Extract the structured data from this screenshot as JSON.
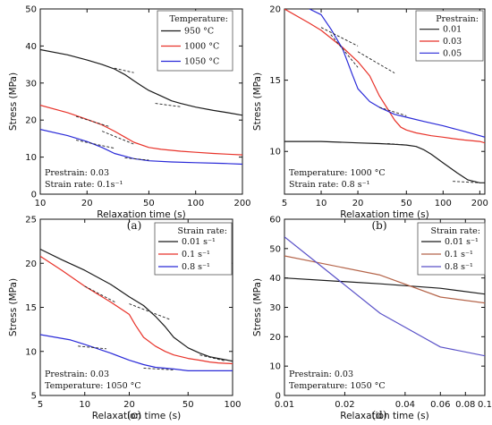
{
  "colors": {
    "black": "#1a1a1a",
    "red": "#e8332a",
    "blue": "#2a2ad8",
    "brown": "#b5654a",
    "violet": "#5a52c8"
  },
  "chart_data": [
    {
      "id": "a",
      "type": "line",
      "panel_label": "(a)",
      "xscale": "log",
      "xlim": [
        10,
        200
      ],
      "ylim": [
        0,
        50
      ],
      "xticks": [
        10,
        20,
        50,
        100,
        200
      ],
      "yticks": [
        0,
        10,
        20,
        30,
        40,
        50
      ],
      "xlabel": "Relaxation time (s)",
      "ylabel": "Stress (MPa)",
      "legend": {
        "title": "Temperature:",
        "position": "top-right"
      },
      "annotations": [
        "Prestrain: 0.03",
        "Strain rate: 0.1s⁻¹"
      ],
      "series": [
        {
          "name": "950 °C",
          "color": "black",
          "x": [
            10,
            15,
            20,
            25,
            30,
            35,
            40,
            45,
            50,
            60,
            70,
            80,
            100,
            130,
            160,
            200
          ],
          "y": [
            39,
            37.6,
            36.2,
            35,
            33.8,
            32.3,
            30.6,
            29.2,
            28,
            26.5,
            25.2,
            24.5,
            23.5,
            22.6,
            22,
            21.3
          ]
        },
        {
          "name": "1000 °C",
          "color": "red",
          "x": [
            10,
            15,
            20,
            25,
            30,
            35,
            40,
            50,
            60,
            80,
            100,
            130,
            160,
            200
          ],
          "y": [
            24,
            22,
            20.2,
            18.7,
            17,
            15.4,
            14,
            12.6,
            12.1,
            11.6,
            11.3,
            11,
            10.8,
            10.6
          ]
        },
        {
          "name": "1050 °C",
          "color": "blue",
          "x": [
            10,
            15,
            20,
            25,
            30,
            40,
            50,
            70,
            100,
            150,
            200
          ],
          "y": [
            17.5,
            15.8,
            14.2,
            12.6,
            11,
            9.6,
            9,
            8.7,
            8.5,
            8.3,
            8.1
          ]
        }
      ],
      "tangents": [
        {
          "x": [
            30,
            40
          ],
          "y": [
            34,
            32.8
          ]
        },
        {
          "x": [
            55,
            80
          ],
          "y": [
            24.5,
            23.6
          ]
        },
        {
          "x": [
            17,
            28
          ],
          "y": [
            21,
            18.2
          ]
        },
        {
          "x": [
            25,
            40
          ],
          "y": [
            17,
            13.5
          ]
        },
        {
          "x": [
            17,
            30
          ],
          "y": [
            14.6,
            12.4
          ]
        },
        {
          "x": [
            35,
            50
          ],
          "y": [
            9.8,
            9.2
          ]
        }
      ]
    },
    {
      "id": "b",
      "type": "line",
      "panel_label": "(b)",
      "xscale": "log",
      "xlim": [
        5,
        220
      ],
      "ylim": [
        7,
        20
      ],
      "xticks": [
        5,
        10,
        20,
        50,
        100,
        200
      ],
      "yticks": [
        10,
        15,
        20
      ],
      "xlabel": "Relaxation time (s)",
      "ylabel": "Stress (MPa)",
      "legend": {
        "title": "Prestrain:",
        "position": "top-right"
      },
      "annotations": [
        "Temperature: 1000 °C",
        "Strain rate: 0.8 s⁻¹"
      ],
      "series": [
        {
          "name": "0.01",
          "color": "black",
          "x": [
            5,
            10,
            20,
            30,
            40,
            50,
            60,
            70,
            80,
            100,
            130,
            160,
            200,
            220
          ],
          "y": [
            10.7,
            10.7,
            10.6,
            10.55,
            10.5,
            10.45,
            10.35,
            10.1,
            9.8,
            9.2,
            8.5,
            8,
            7.8,
            7.8
          ]
        },
        {
          "name": "0.03",
          "color": "red",
          "x": [
            5,
            8,
            10,
            15,
            20,
            25,
            30,
            35,
            40,
            45,
            50,
            60,
            80,
            100,
            120,
            150,
            200,
            220
          ],
          "y": [
            20,
            19,
            18.5,
            17.3,
            16.3,
            15.3,
            13.9,
            13,
            12.2,
            11.7,
            11.5,
            11.3,
            11.1,
            11,
            10.9,
            10.8,
            10.7,
            10.6
          ]
        },
        {
          "name": "0.05",
          "color": "blue",
          "x": [
            8,
            10,
            12,
            15,
            18,
            20,
            25,
            30,
            40,
            50,
            70,
            100,
            150,
            200,
            220
          ],
          "y": [
            20,
            19.6,
            18.6,
            17.2,
            15.4,
            14.4,
            13.5,
            13.1,
            12.6,
            12.4,
            12.1,
            11.8,
            11.4,
            11.1,
            11
          ]
        }
      ],
      "tangents": [
        {
          "x": [
            10,
            20
          ],
          "y": [
            18.7,
            17.4
          ]
        },
        {
          "x": [
            20,
            40
          ],
          "y": [
            17,
            15.5
          ]
        },
        {
          "x": [
            12,
            20
          ],
          "y": [
            18.2,
            15.9
          ]
        },
        {
          "x": [
            30,
            50
          ],
          "y": [
            13.1,
            12.5
          ]
        },
        {
          "x": [
            35,
            50
          ],
          "y": [
            10.55,
            10.45
          ]
        },
        {
          "x": [
            120,
            200
          ],
          "y": [
            7.9,
            7.8
          ]
        }
      ]
    },
    {
      "id": "c",
      "type": "line",
      "panel_label": "(c)",
      "xscale": "log",
      "xlim": [
        5,
        100
      ],
      "ylim": [
        5,
        25
      ],
      "xticks": [
        5,
        10,
        20,
        50,
        100
      ],
      "yticks": [
        5,
        10,
        15,
        20,
        25
      ],
      "xlabel": "Relaxation time (s)",
      "ylabel": "Stress (MPa)",
      "legend": {
        "title": "Strain rate:",
        "position": "top-right"
      },
      "annotations": [
        "Prestrain: 0.03",
        "Temperature: 1050 °C"
      ],
      "series": [
        {
          "name": "0.01 s⁻¹",
          "color": "black",
          "x": [
            5,
            7,
            10,
            15,
            20,
            25,
            30,
            35,
            40,
            50,
            60,
            70,
            80,
            100
          ],
          "y": [
            21.6,
            20.4,
            19.2,
            17.6,
            16.2,
            15.2,
            14,
            12.8,
            11.6,
            10.4,
            9.8,
            9.4,
            9.2,
            8.9
          ]
        },
        {
          "name": "0.1 s⁻¹",
          "color": "red",
          "x": [
            5,
            7,
            10,
            15,
            20,
            22,
            25,
            30,
            35,
            40,
            50,
            60,
            70,
            80,
            100
          ],
          "y": [
            20.8,
            19.2,
            17.4,
            15.6,
            14.2,
            13,
            11.6,
            10.6,
            10,
            9.6,
            9.2,
            9,
            8.8,
            8.7,
            8.6
          ]
        },
        {
          "name": "0.8 s⁻¹",
          "color": "blue",
          "x": [
            5,
            8,
            10,
            15,
            20,
            25,
            30,
            40,
            50,
            60,
            80,
            100
          ],
          "y": [
            11.9,
            11.3,
            10.8,
            9.8,
            9,
            8.5,
            8.2,
            8,
            7.8,
            7.8,
            7.8,
            7.8
          ]
        }
      ],
      "tangents": [
        {
          "x": [
            20,
            38
          ],
          "y": [
            15.4,
            13.6
          ]
        },
        {
          "x": [
            10,
            16
          ],
          "y": [
            17.4,
            15.6
          ]
        },
        {
          "x": [
            60,
            90
          ],
          "y": [
            9.6,
            8.9
          ]
        },
        {
          "x": [
            9,
            14
          ],
          "y": [
            10.6,
            10.3
          ]
        },
        {
          "x": [
            25,
            40
          ],
          "y": [
            8.1,
            7.9
          ]
        }
      ]
    },
    {
      "id": "d",
      "type": "line",
      "panel_label": "(d)",
      "xscale": "log",
      "xlim": [
        0.01,
        0.1
      ],
      "ylim": [
        0,
        60
      ],
      "xticks": [
        0.01,
        0.02,
        0.04,
        0.06,
        0.08,
        0.1
      ],
      "xticklabels": [
        "0.01",
        "0.02",
        "0.04",
        "0.06",
        "0.08",
        "0.1"
      ],
      "yticks": [
        0,
        10,
        20,
        30,
        40,
        50,
        60
      ],
      "xlabel": "Relaxation time (s)",
      "ylabel": "Stress (MPa)",
      "legend": {
        "title": "Strain rate:",
        "position": "top-right"
      },
      "annotations": [
        "Prestrain: 0.03",
        "Temperature: 1050 °C"
      ],
      "series": [
        {
          "name": "0.01 s⁻¹",
          "color": "black",
          "x": [
            0.01,
            0.03,
            0.06,
            0.1
          ],
          "y": [
            40,
            38,
            36.5,
            34.5
          ]
        },
        {
          "name": "0.1 s⁻¹",
          "color": "brown",
          "x": [
            0.01,
            0.03,
            0.06,
            0.1
          ],
          "y": [
            47.5,
            41,
            33.5,
            31.5
          ]
        },
        {
          "name": "0.8 s⁻¹",
          "color": "violet",
          "x": [
            0.01,
            0.03,
            0.06,
            0.1
          ],
          "y": [
            54,
            28,
            16.5,
            13.5
          ]
        }
      ],
      "tangents": []
    }
  ]
}
